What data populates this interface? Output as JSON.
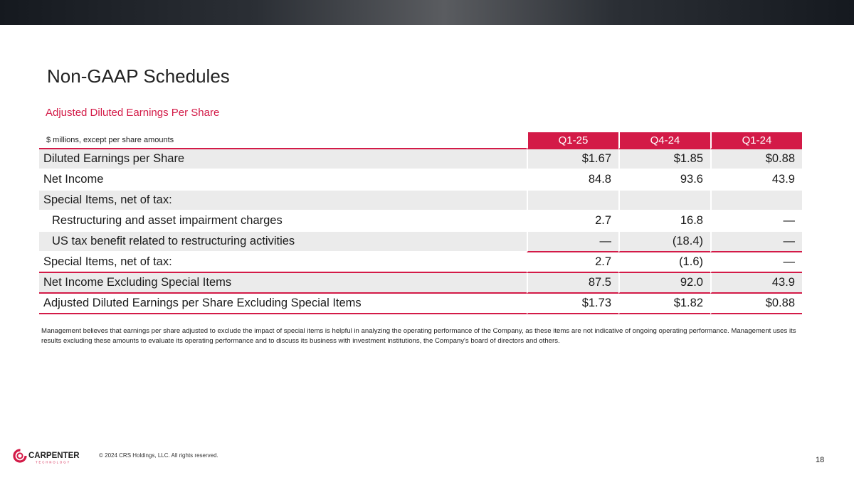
{
  "title": "Non-GAAP Schedules",
  "subtitle": "Adjusted Diluted Earnings Per Share",
  "table": {
    "units_label": "$ millions, except per share amounts",
    "columns": [
      "Q1-25",
      "Q4-24",
      "Q1-24"
    ],
    "rows": [
      {
        "label": "Diluted Earnings per Share",
        "values": [
          "$1.67",
          "$1.85",
          "$0.88"
        ]
      },
      {
        "label": "Net Income",
        "values": [
          "84.8",
          "93.6",
          "43.9"
        ]
      },
      {
        "label": "Special Items, net of tax:",
        "values": [
          "",
          "",
          ""
        ]
      },
      {
        "label": "Restructuring and asset impairment charges",
        "values": [
          "2.7",
          "16.8",
          "—"
        ]
      },
      {
        "label": "US tax benefit related to restructuring activities",
        "values": [
          "—",
          "(18.4)",
          "—"
        ]
      },
      {
        "label": "Special Items, net of tax:",
        "values": [
          "2.7",
          "(1.6)",
          "—"
        ]
      },
      {
        "label": "Net Income Excluding Special Items",
        "values": [
          "87.5",
          "92.0",
          "43.9"
        ]
      },
      {
        "label": "Adjusted Diluted Earnings per Share Excluding Special Items",
        "values": [
          "$1.73",
          "$1.82",
          "$0.88"
        ]
      }
    ]
  },
  "note": "Management believes that earnings per share adjusted to exclude the impact of special items is helpful in analyzing the operating performance of the Company, as these items are not indicative of ongoing operating performance. Management uses its results excluding these amounts to evaluate its operating performance and to discuss its business with investment institutions, the Company's board of directors and others.",
  "footer": {
    "logo_text": "CARPENTER",
    "logo_subtext": "TECHNOLOGY",
    "copyright": "© 2024 CRS Holdings, LLC. All rights reserved.",
    "page_number": "18"
  },
  "colors": {
    "accent": "#d31a47",
    "row_shade": "#ebebeb",
    "top_bar": "#2b2f35"
  }
}
